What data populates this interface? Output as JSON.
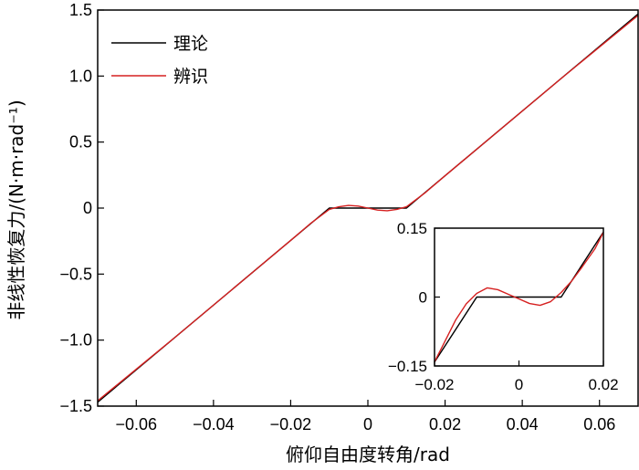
{
  "chart_data": [
    {
      "type": "line",
      "xlabel": "俯仰自由度转角/rad",
      "ylabel": "非线性恢复力/(N·m·rad⁻¹)",
      "xlim": [
        -0.07,
        0.07
      ],
      "ylim": [
        -1.5,
        1.5
      ],
      "xticks": [
        -0.06,
        -0.04,
        -0.02,
        0,
        0.02,
        0.04,
        0.06
      ],
      "xtick_labels": [
        "−0.06",
        "−0.04",
        "−0.02",
        "0",
        "0.02",
        "0.04",
        "0.06"
      ],
      "yticks": [
        -1.5,
        -1.0,
        -0.5,
        0,
        0.5,
        1.0,
        1.5
      ],
      "ytick_labels": [
        "−1.5",
        "−1.0",
        "−0.5",
        "0",
        "0.5",
        "1.0",
        "1.5"
      ],
      "grid": false,
      "legend": "top-left",
      "series": [
        {
          "name": "理论",
          "color": "#000000",
          "x": [
            -0.07,
            -0.01,
            0.01,
            0.07
          ],
          "y": [
            -1.47,
            0.0,
            0.0,
            1.47
          ]
        },
        {
          "name": "辨识",
          "color": "#d62020",
          "x": [
            -0.07,
            -0.05,
            -0.03,
            -0.02,
            -0.015,
            -0.01,
            -0.0075,
            -0.005,
            -0.0025,
            0,
            0.0025,
            0.005,
            0.0075,
            0.01,
            0.015,
            0.02,
            0.03,
            0.05,
            0.07
          ],
          "y": [
            -1.46,
            -0.98,
            -0.49,
            -0.245,
            -0.12,
            -0.01,
            0.01,
            0.02,
            0.015,
            0.0,
            -0.015,
            -0.02,
            -0.01,
            0.01,
            0.12,
            0.245,
            0.49,
            0.98,
            1.46
          ]
        }
      ]
    },
    {
      "type": "line",
      "xlim": [
        -0.02,
        0.02
      ],
      "ylim": [
        -0.15,
        0.15
      ],
      "xticks": [
        -0.02,
        0,
        0.02
      ],
      "xtick_labels": [
        "−0.02",
        "0",
        "0.02"
      ],
      "yticks": [
        -0.15,
        0,
        0.15
      ],
      "ytick_labels": [
        "−0.15",
        "0",
        "0.15"
      ],
      "grid": false,
      "series": [
        {
          "color": "#000000",
          "x": [
            -0.0206,
            -0.01,
            0.01,
            0.0206
          ],
          "y": [
            -0.15,
            0.0,
            0.0,
            0.15
          ]
        },
        {
          "color": "#d62020",
          "x": [
            -0.0205,
            -0.018,
            -0.015,
            -0.0125,
            -0.01,
            -0.0075,
            -0.005,
            -0.0025,
            0,
            0.0025,
            0.005,
            0.0075,
            0.01,
            0.0125,
            0.015,
            0.018,
            0.0205
          ],
          "y": [
            -0.15,
            -0.105,
            -0.05,
            -0.015,
            0.008,
            0.02,
            0.016,
            0.006,
            -0.004,
            -0.014,
            -0.018,
            -0.01,
            0.01,
            0.035,
            0.066,
            0.105,
            0.15
          ]
        }
      ]
    }
  ]
}
